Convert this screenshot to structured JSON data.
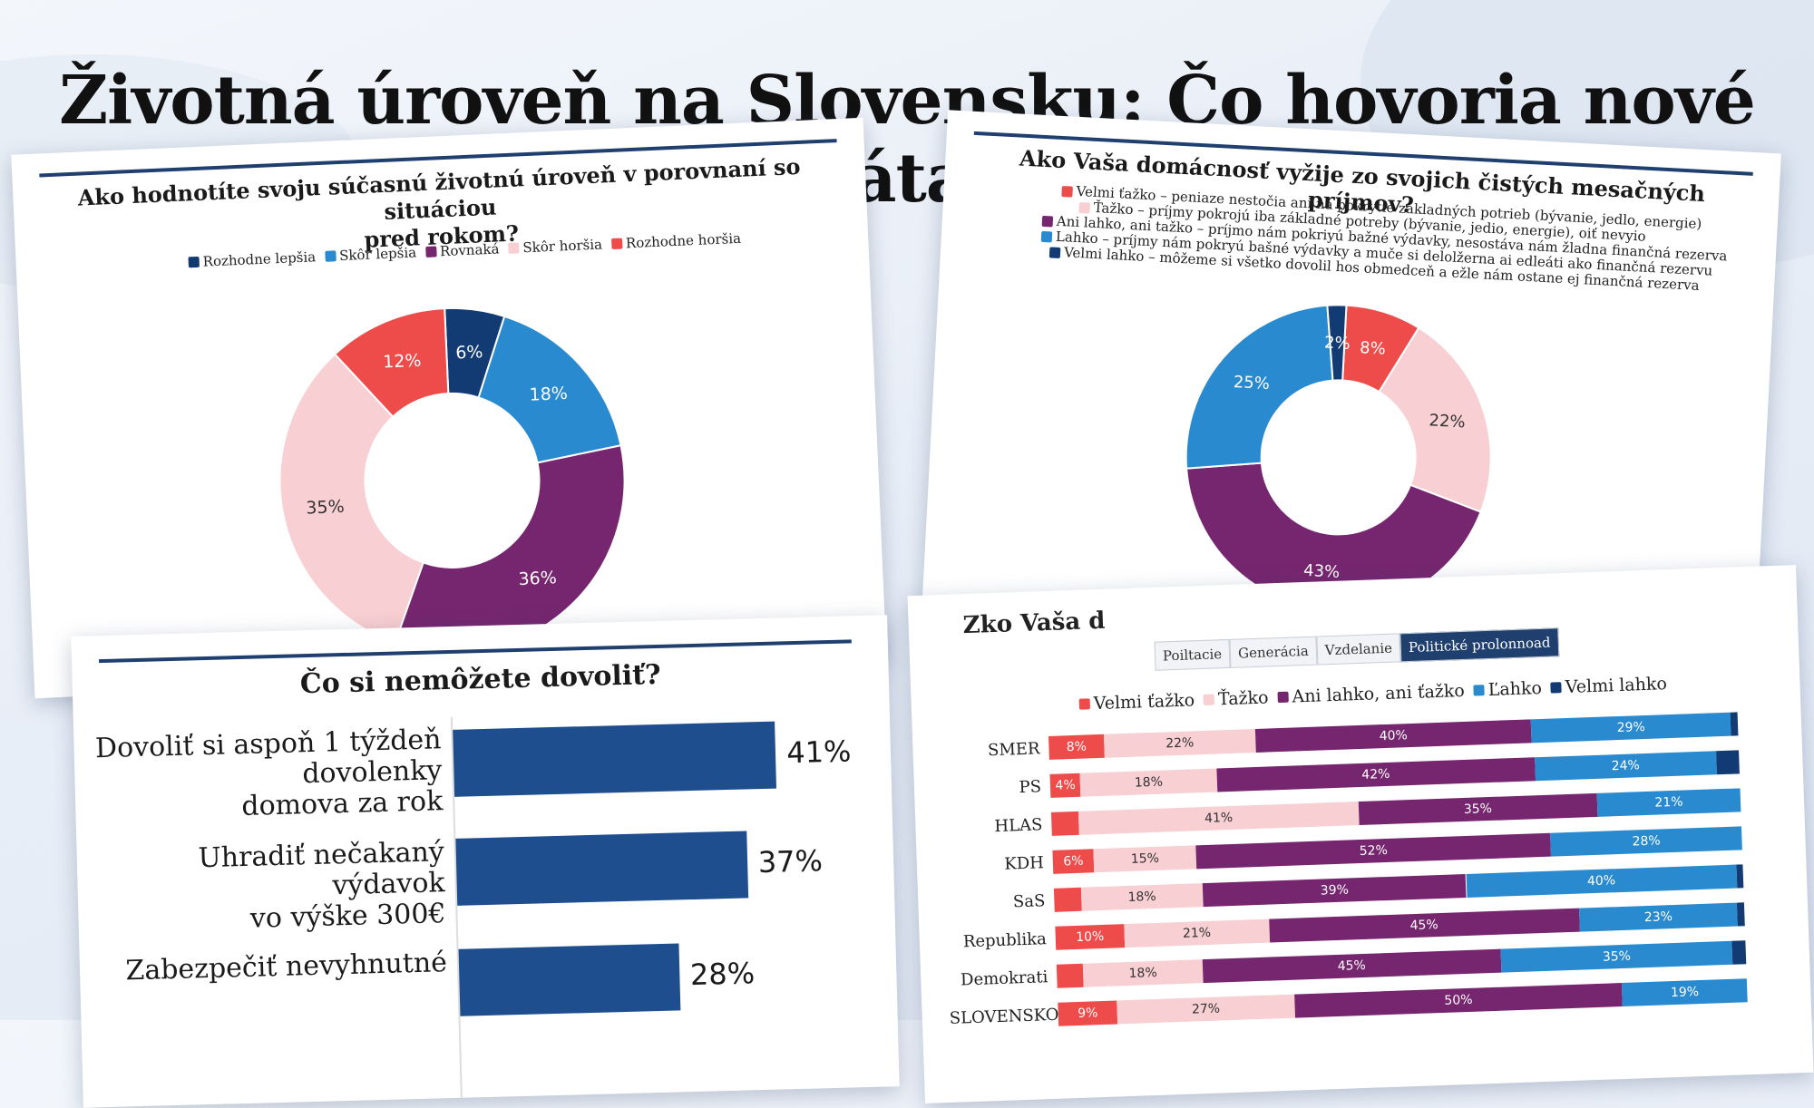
{
  "page_title": "Životná úroveň na Slovensku: Čo hovoria nové dáta?",
  "colors": {
    "navy": "#123a73",
    "blue": "#2a8ad0",
    "purple": "#76266f",
    "pink": "#f8cfd2",
    "red": "#ee4b4b",
    "bar_blue": "#1f4e8f"
  },
  "chart_data": [
    {
      "type": "pie",
      "title": "Ako hodnotíte svoju súčasnú životnú úroveň v porovnaní so situáciou pred rokom?",
      "title_line1": "Ako hodnotíte svoju súčasnú životnú úroveň v porovnaní so situáciou",
      "title_line2": "pred rokom?",
      "legend": [
        "Rozhodne lepšia",
        "Skôr lepšia",
        "Rovnaká",
        "Skôr horšia",
        "Rozhodne horšia"
      ],
      "slices": [
        {
          "label": "Rozhodne lepšia",
          "value": 6,
          "text": "6%",
          "color": "#123a73"
        },
        {
          "label": "Skôr lepšia",
          "value": 18,
          "text": "18%",
          "color": "#2a8ad0"
        },
        {
          "label": "Rovnaká",
          "value": 36,
          "text": "36%",
          "color": "#76266f"
        },
        {
          "label": "Skôr horšia",
          "value": 35,
          "text": "35%",
          "color": "#f8cfd2"
        },
        {
          "label": "Rozhodne horšia",
          "value": 12,
          "text": "12%",
          "color": "#ee4b4b"
        }
      ]
    },
    {
      "type": "pie",
      "title": "Ako Vaša domácnosť vyžije zo svojich čistých mesačných príjmov?",
      "legend": [
        "Velmi ťažko – peniaze nestočia ani na pokrytie základných potrieb (bývanie, jedlo, energie)",
        "Ťažko – príjmy pokrojú iba základné potreby (bývanie, jedio, energie), oiť nevyio",
        "Ani lahko, ani tažko – príjmo nám pokriyú bažné výdavky, nesostáva nám žladna finančná rezerva",
        "Lahko – príjmy nám pokryú bašné výdavky a muče si delolžerna ai edleáti ako finančná rezervu",
        "Velmi lahko – môžeme si všetko dovolil hos obmedceň a ežle nám ostane ej finančná rezerva"
      ],
      "slices": [
        {
          "label": "Velmi ťažko",
          "value": 8,
          "text": "8%",
          "color": "#ee4b4b"
        },
        {
          "label": "Ťažko",
          "value": 22,
          "text": "22%",
          "color": "#f8cfd2"
        },
        {
          "label": "Ani lahko, ani tažko",
          "value": 43,
          "text": "43%",
          "color": "#76266f"
        },
        {
          "label": "Lahko",
          "value": 25,
          "text": "25%",
          "color": "#2a8ad0"
        },
        {
          "label": "Velmi lahko",
          "value": 2,
          "text": "2%",
          "color": "#123a73"
        }
      ]
    },
    {
      "type": "bar",
      "orientation": "horizontal",
      "title": "Čo si nemôžete dovoliť?",
      "categories": [
        "Dovoliť si aspoň 1 týždeň dovolenky domova za rok",
        "Uhradiť nečakaný výdavok vo výške 300€",
        "Zabezpečiť nevyhnutné"
      ],
      "category_lines": [
        [
          "Dovoliť si aspoň 1 týždeň",
          "dovolenky",
          "domova za rok"
        ],
        [
          "Uhradiť nečakaný výdavok",
          "vo výške 300€"
        ],
        [
          "Zabezpečiť nevyhnutné"
        ]
      ],
      "values": [
        41,
        37,
        28
      ],
      "value_labels": [
        "41%",
        "37%",
        "28%"
      ],
      "xlim": [
        0,
        45
      ]
    },
    {
      "type": "bar",
      "orientation": "horizontal-stacked",
      "title_partial": "Zko Vaša d",
      "tabs": [
        "Poiltacie",
        "Generácia",
        "Vzdelanie",
        "Politické prolonnoad"
      ],
      "active_tab": 3,
      "legend": [
        "Velmi ťažko",
        "Ťažko",
        "Ani lahko, ani ťažko",
        "Ľahko",
        "Velmi lahko"
      ],
      "categories": [
        "SMER",
        "PS",
        "HLAS",
        "KDH",
        "SaS",
        "Republika",
        "Demokrati",
        "SLOVENSKO"
      ],
      "series": [
        {
          "name": "Velmi ťažko",
          "values": [
            8,
            4,
            4,
            6,
            4,
            10,
            4,
            9
          ],
          "labels": [
            "8%",
            "4%",
            "",
            "6%",
            "",
            "10%",
            "",
            "9%"
          ]
        },
        {
          "name": "Ťažko",
          "values": [
            22,
            18,
            41,
            15,
            18,
            21,
            18,
            27
          ],
          "labels": [
            "22%",
            "18%",
            "41%",
            "15%",
            "18%",
            "21%",
            "18%",
            "27%"
          ]
        },
        {
          "name": "Ani lahko, ani ťažko",
          "values": [
            40,
            42,
            35,
            52,
            39,
            45,
            45,
            50
          ],
          "labels": [
            "40%",
            "42%",
            "35%",
            "52%",
            "39%",
            "45%",
            "45%",
            "50%"
          ]
        },
        {
          "name": "Ľahko",
          "values": [
            29,
            24,
            21,
            28,
            40,
            23,
            35,
            19
          ],
          "labels": [
            "29%",
            "24%",
            "21%",
            "28%",
            "40%",
            "23%",
            "35%",
            "19%"
          ]
        },
        {
          "name": "Velmi lahko",
          "values": [
            1,
            3,
            0,
            0,
            1,
            1,
            2,
            0
          ],
          "labels": [
            "",
            "",
            "",
            "",
            "",
            "",
            "",
            ""
          ]
        }
      ]
    }
  ]
}
